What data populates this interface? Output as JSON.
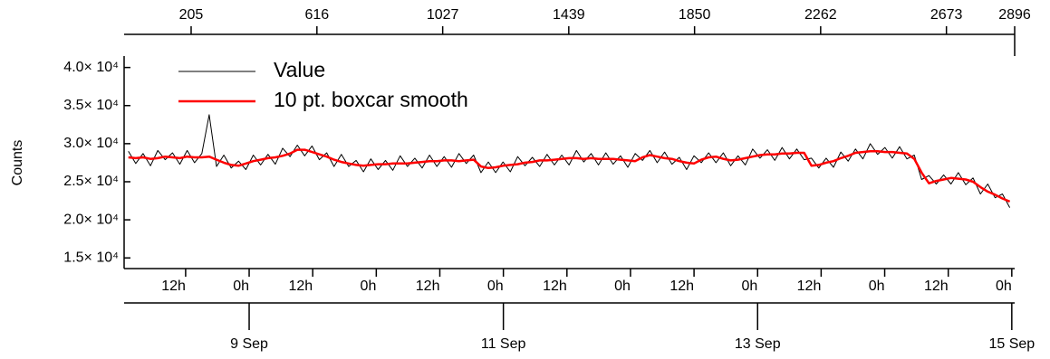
{
  "chart_data": {
    "type": "line",
    "ylabel": "Counts",
    "x": [
      0,
      24,
      48,
      72,
      96,
      120,
      144,
      168,
      192,
      216,
      240,
      264,
      288,
      312,
      336,
      360,
      384,
      408,
      432,
      456,
      480,
      504,
      528,
      552,
      576,
      600,
      624,
      648,
      672,
      696,
      720,
      744,
      768,
      792,
      816,
      840,
      864,
      888,
      912,
      936,
      960,
      984,
      1008,
      1032,
      1056,
      1080,
      1104,
      1128,
      1152,
      1176,
      1200,
      1224,
      1248,
      1272,
      1296,
      1320,
      1344,
      1368,
      1392,
      1416,
      1440,
      1464,
      1488,
      1512,
      1536,
      1560,
      1584,
      1608,
      1632,
      1656,
      1680,
      1704,
      1728,
      1752,
      1776,
      1800,
      1824,
      1848,
      1872,
      1896,
      1920,
      1944,
      1968,
      1992,
      2016,
      2040,
      2064,
      2088,
      2112,
      2136,
      2160,
      2184,
      2208,
      2232,
      2256,
      2280,
      2304,
      2328,
      2352,
      2376,
      2400,
      2424,
      2448,
      2472,
      2496,
      2520,
      2544,
      2568,
      2592,
      2616,
      2640,
      2664,
      2688,
      2712,
      2736,
      2760,
      2784,
      2808,
      2832,
      2856,
      2880
    ],
    "series": [
      {
        "name": "Value",
        "color": "#000000",
        "width": 1,
        "values": [
          29000,
          27400,
          28700,
          27100,
          29100,
          27900,
          28800,
          27300,
          29100,
          27500,
          28700,
          33800,
          27000,
          28500,
          26800,
          27700,
          26600,
          28500,
          27200,
          28600,
          27300,
          29400,
          28300,
          29800,
          28400,
          29700,
          27900,
          28800,
          27000,
          28600,
          27000,
          27800,
          26300,
          28000,
          26600,
          27800,
          26500,
          28400,
          27000,
          28100,
          26800,
          28500,
          27000,
          28300,
          26900,
          28700,
          27400,
          28500,
          26200,
          27600,
          26200,
          27600,
          26300,
          28300,
          27100,
          28200,
          27000,
          28600,
          27200,
          28500,
          27200,
          29100,
          27600,
          28700,
          27200,
          28800,
          27300,
          28400,
          26900,
          28700,
          27800,
          29100,
          27500,
          28900,
          27300,
          28200,
          26600,
          28400,
          27500,
          28800,
          27500,
          28800,
          27100,
          28400,
          27200,
          29300,
          28100,
          29200,
          27800,
          29500,
          28000,
          29300,
          27900,
          28100,
          26800,
          28100,
          26900,
          28900,
          27700,
          29300,
          28000,
          30000,
          28600,
          29500,
          28100,
          29600,
          28000,
          28500,
          25300,
          25800,
          24700,
          25900,
          24700,
          26200,
          24600,
          25500,
          23400,
          24700,
          22900,
          23400,
          21600
        ]
      },
      {
        "name": "10 pt. boxcar smooth",
        "color": "#ff0000",
        "width": 2.5,
        "values": [
          28200,
          28100,
          28200,
          28000,
          28100,
          28300,
          28200,
          28100,
          28300,
          28200,
          28200,
          28300,
          27900,
          27500,
          27200,
          27100,
          27400,
          27700,
          27900,
          28100,
          28200,
          28400,
          28700,
          29200,
          29200,
          28900,
          28600,
          28300,
          27900,
          27600,
          27400,
          27200,
          27100,
          27200,
          27300,
          27300,
          27400,
          27400,
          27400,
          27500,
          27600,
          27700,
          27700,
          27800,
          27800,
          27700,
          27800,
          27900,
          27000,
          26800,
          26900,
          27100,
          27200,
          27300,
          27500,
          27600,
          27800,
          27800,
          27900,
          28000,
          28100,
          28100,
          28000,
          28100,
          28000,
          28000,
          28000,
          27900,
          27800,
          27700,
          28200,
          28500,
          28300,
          28100,
          28000,
          27700,
          27500,
          27400,
          27900,
          28200,
          28300,
          28000,
          27800,
          27900,
          28100,
          28300,
          28500,
          28600,
          28600,
          28700,
          28700,
          28800,
          28800,
          27100,
          27200,
          27500,
          27700,
          28100,
          28400,
          28800,
          28900,
          29000,
          29000,
          28900,
          28900,
          28800,
          28700,
          28000,
          26200,
          24800,
          25100,
          25300,
          25500,
          25400,
          25300,
          25000,
          24300,
          23700,
          23300,
          22800,
          22400
        ]
      }
    ],
    "xlim": [
      -14,
      2896
    ],
    "top_xticks": [
      205,
      616,
      1027,
      1439,
      1850,
      2262,
      2673,
      2896
    ],
    "xticks": [
      {
        "value": 187,
        "label": "12h"
      },
      {
        "value": 394.6,
        "label": "0h"
      },
      {
        "value": 602.3,
        "label": "12h"
      },
      {
        "value": 810,
        "label": "0h"
      },
      {
        "value": 1017.6,
        "label": "12h"
      },
      {
        "value": 1225.3,
        "label": "0h"
      },
      {
        "value": 1433,
        "label": "12h"
      },
      {
        "value": 1640.6,
        "label": "0h"
      },
      {
        "value": 1848.3,
        "label": "12h"
      },
      {
        "value": 2056,
        "label": "0h"
      },
      {
        "value": 2263.6,
        "label": "12h"
      },
      {
        "value": 2471.3,
        "label": "0h"
      },
      {
        "value": 2679,
        "label": "12h"
      },
      {
        "value": 2886.6,
        "label": "0h"
      }
    ],
    "date_ticks": [
      {
        "value": 394.6,
        "label": "9 Sep"
      },
      {
        "value": 1225.3,
        "label": "11 Sep"
      },
      {
        "value": 2056,
        "label": "13 Sep"
      },
      {
        "value": 2886.6,
        "label": "15 Sep"
      }
    ],
    "ylim": [
      13600,
      41500
    ],
    "yticks": [
      {
        "value": 15000,
        "label": "1.5× 10⁴"
      },
      {
        "value": 20000,
        "label": "2.0× 10⁴"
      },
      {
        "value": 25000,
        "label": "2.5× 10⁴"
      },
      {
        "value": 30000,
        "label": "3.0× 10⁴"
      },
      {
        "value": 35000,
        "label": "3.5× 10⁴"
      },
      {
        "value": 40000,
        "label": "4.0× 10⁴"
      }
    ],
    "legend": "upper left"
  }
}
